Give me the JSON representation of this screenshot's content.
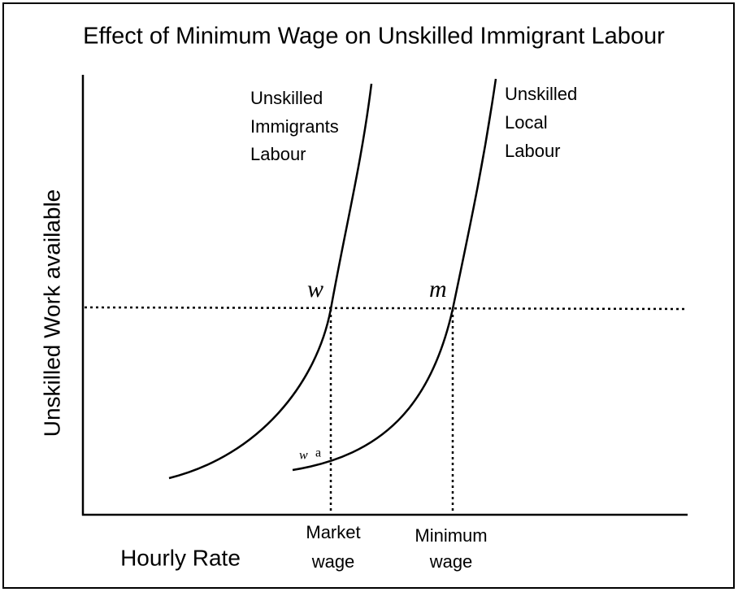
{
  "title": "Effect of Minimum Wage on Unskilled Immigrant Labour",
  "axes": {
    "y_label": "Unskilled Work available",
    "x_label": "Hourly Rate"
  },
  "curves": [
    {
      "label_lines": [
        "Unskilled",
        "Immigrants",
        "Labour"
      ]
    },
    {
      "label_lines": [
        "Unskilled",
        "Local",
        "Labour"
      ]
    }
  ],
  "points": [
    {
      "label": "w"
    },
    {
      "label": "m"
    }
  ],
  "annotation": {
    "parts": [
      "w",
      "a"
    ]
  },
  "markers": [
    {
      "label_lines": [
        "Market",
        "wage"
      ]
    },
    {
      "label_lines": [
        "Minimum",
        "wage"
      ]
    }
  ]
}
